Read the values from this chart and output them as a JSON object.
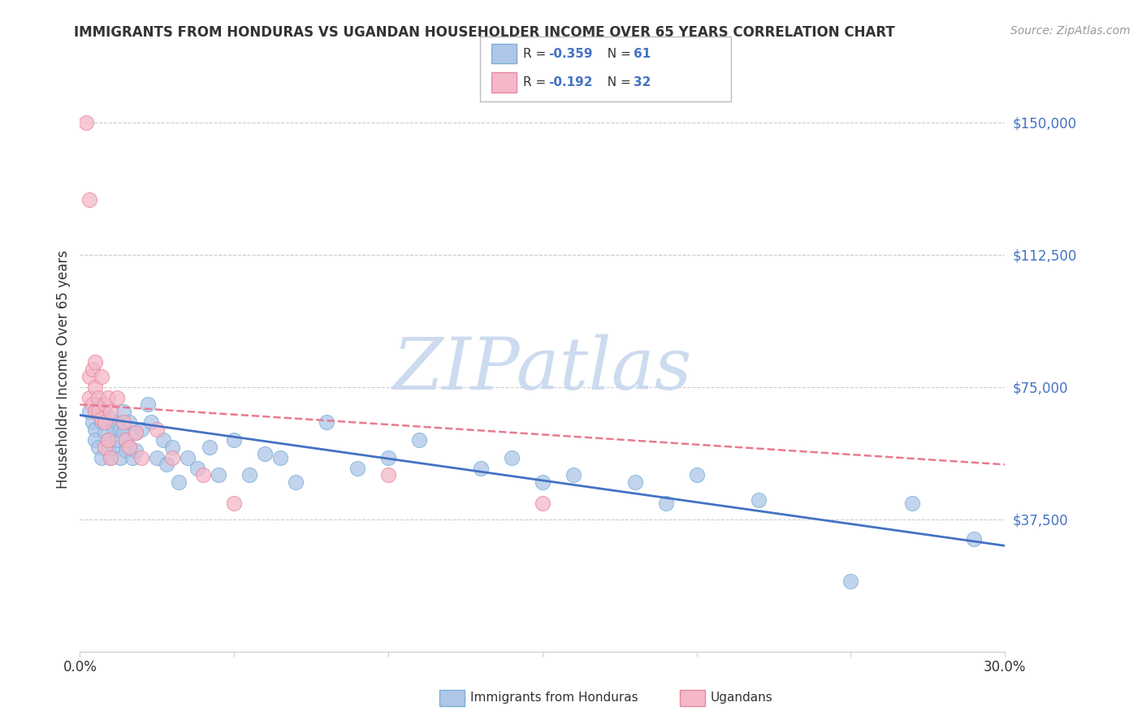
{
  "title": "IMMIGRANTS FROM HONDURAS VS UGANDAN HOUSEHOLDER INCOME OVER 65 YEARS CORRELATION CHART",
  "source": "Source: ZipAtlas.com",
  "ylabel": "Householder Income Over 65 years",
  "xlim": [
    0.0,
    0.3
  ],
  "ylim": [
    0,
    160000
  ],
  "yticks": [
    37500,
    75000,
    112500,
    150000
  ],
  "ytick_labels": [
    "$37,500",
    "$75,000",
    "$112,500",
    "$150,000"
  ],
  "legend_r_blue": "R = -0.359",
  "legend_n_blue": "N = 61",
  "legend_r_pink": "R = -0.192",
  "legend_n_pink": "N = 32",
  "bottom_label_blue": "Immigrants from Honduras",
  "bottom_label_pink": "Ugandans",
  "blue_scatter_color": "#aec6e8",
  "blue_edge_color": "#7bafd4",
  "pink_scatter_color": "#f4b8c8",
  "pink_edge_color": "#e888a0",
  "blue_line_color": "#4472c4",
  "pink_line_color": "#e87a90",
  "grid_color": "#cccccc",
  "watermark_color": "#c8d8ee",
  "blue_scatter": [
    [
      0.003,
      68000
    ],
    [
      0.004,
      65000
    ],
    [
      0.005,
      63000
    ],
    [
      0.005,
      60000
    ],
    [
      0.006,
      70000
    ],
    [
      0.006,
      58000
    ],
    [
      0.007,
      65000
    ],
    [
      0.007,
      55000
    ],
    [
      0.008,
      62000
    ],
    [
      0.008,
      68000
    ],
    [
      0.009,
      60000
    ],
    [
      0.009,
      57000
    ],
    [
      0.01,
      66000
    ],
    [
      0.01,
      55000
    ],
    [
      0.011,
      63000
    ],
    [
      0.011,
      58000
    ],
    [
      0.012,
      65000
    ],
    [
      0.012,
      60000
    ],
    [
      0.013,
      63000
    ],
    [
      0.013,
      55000
    ],
    [
      0.014,
      68000
    ],
    [
      0.014,
      62000
    ],
    [
      0.015,
      60000
    ],
    [
      0.015,
      57000
    ],
    [
      0.016,
      65000
    ],
    [
      0.016,
      58000
    ],
    [
      0.017,
      55000
    ],
    [
      0.018,
      62000
    ],
    [
      0.018,
      57000
    ],
    [
      0.02,
      63000
    ],
    [
      0.022,
      70000
    ],
    [
      0.023,
      65000
    ],
    [
      0.025,
      55000
    ],
    [
      0.027,
      60000
    ],
    [
      0.028,
      53000
    ],
    [
      0.03,
      58000
    ],
    [
      0.032,
      48000
    ],
    [
      0.035,
      55000
    ],
    [
      0.038,
      52000
    ],
    [
      0.042,
      58000
    ],
    [
      0.045,
      50000
    ],
    [
      0.05,
      60000
    ],
    [
      0.055,
      50000
    ],
    [
      0.06,
      56000
    ],
    [
      0.065,
      55000
    ],
    [
      0.07,
      48000
    ],
    [
      0.08,
      65000
    ],
    [
      0.09,
      52000
    ],
    [
      0.1,
      55000
    ],
    [
      0.11,
      60000
    ],
    [
      0.13,
      52000
    ],
    [
      0.14,
      55000
    ],
    [
      0.15,
      48000
    ],
    [
      0.16,
      50000
    ],
    [
      0.18,
      48000
    ],
    [
      0.19,
      42000
    ],
    [
      0.2,
      50000
    ],
    [
      0.22,
      43000
    ],
    [
      0.25,
      20000
    ],
    [
      0.27,
      42000
    ],
    [
      0.29,
      32000
    ]
  ],
  "pink_scatter": [
    [
      0.002,
      150000
    ],
    [
      0.003,
      128000
    ],
    [
      0.003,
      78000
    ],
    [
      0.003,
      72000
    ],
    [
      0.004,
      80000
    ],
    [
      0.004,
      70000
    ],
    [
      0.005,
      75000
    ],
    [
      0.005,
      68000
    ],
    [
      0.005,
      82000
    ],
    [
      0.006,
      72000
    ],
    [
      0.006,
      68000
    ],
    [
      0.007,
      78000
    ],
    [
      0.007,
      66000
    ],
    [
      0.008,
      70000
    ],
    [
      0.008,
      65000
    ],
    [
      0.008,
      58000
    ],
    [
      0.009,
      72000
    ],
    [
      0.009,
      60000
    ],
    [
      0.01,
      68000
    ],
    [
      0.01,
      55000
    ],
    [
      0.012,
      72000
    ],
    [
      0.014,
      65000
    ],
    [
      0.015,
      60000
    ],
    [
      0.016,
      58000
    ],
    [
      0.018,
      62000
    ],
    [
      0.02,
      55000
    ],
    [
      0.025,
      63000
    ],
    [
      0.03,
      55000
    ],
    [
      0.04,
      50000
    ],
    [
      0.05,
      42000
    ],
    [
      0.1,
      50000
    ],
    [
      0.15,
      42000
    ]
  ],
  "blue_trend": [
    0.0,
    67000,
    0.3,
    30000
  ],
  "pink_trend": [
    0.0,
    70000,
    0.3,
    53000
  ],
  "title_fontsize": 12,
  "source_fontsize": 10,
  "tick_fontsize": 12,
  "ylabel_fontsize": 12
}
